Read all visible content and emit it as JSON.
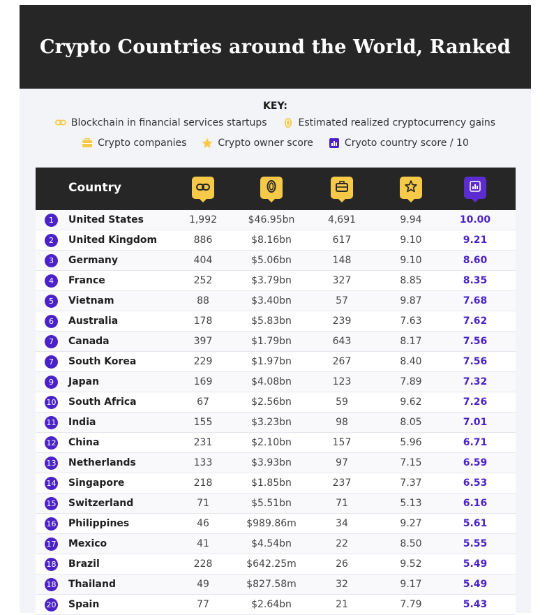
{
  "title": "Crypto Countries around the World, Ranked",
  "key": {
    "heading": "KEY:",
    "items": [
      {
        "icon": "chain-link-icon",
        "label": "Blockchain in financial services startups"
      },
      {
        "icon": "coin-icon",
        "label": "Estimated realized cryptocurrency gains"
      },
      {
        "icon": "briefcase-icon",
        "label": "Crypto companies"
      },
      {
        "icon": "star-icon",
        "label": "Crypto owner score"
      },
      {
        "icon": "bar-chart-icon",
        "label": "Cryoto country score / 10"
      }
    ]
  },
  "colors": {
    "accent": "#4a22c7",
    "yellow": "#f7c948",
    "dark": "#262626"
  },
  "table": {
    "country_header": "Country",
    "column_icons": [
      "chain-link-icon",
      "coin-icon",
      "briefcase-icon",
      "star-icon",
      "bar-chart-icon"
    ],
    "rows": [
      {
        "rank": "1",
        "country": "United States",
        "startups": "1,992",
        "gains": "$46.95bn",
        "companies": "4,691",
        "owner": "9.94",
        "score": "10.00"
      },
      {
        "rank": "2",
        "country": "United Kingdom",
        "startups": "886",
        "gains": "$8.16bn",
        "companies": "617",
        "owner": "9.10",
        "score": "9.21"
      },
      {
        "rank": "3",
        "country": "Germany",
        "startups": "404",
        "gains": "$5.06bn",
        "companies": "148",
        "owner": "9.10",
        "score": "8.60"
      },
      {
        "rank": "4",
        "country": "France",
        "startups": "252",
        "gains": "$3.79bn",
        "companies": "327",
        "owner": "8.85",
        "score": "8.35"
      },
      {
        "rank": "5",
        "country": "Vietnam",
        "startups": "88",
        "gains": "$3.40bn",
        "companies": "57",
        "owner": "9.87",
        "score": "7.68"
      },
      {
        "rank": "6",
        "country": "Australia",
        "startups": "178",
        "gains": "$5.83bn",
        "companies": "239",
        "owner": "7.63",
        "score": "7.62"
      },
      {
        "rank": "7",
        "country": "Canada",
        "startups": "397",
        "gains": "$1.79bn",
        "companies": "643",
        "owner": "8.17",
        "score": "7.56"
      },
      {
        "rank": "7",
        "country": "South Korea",
        "startups": "229",
        "gains": "$1.97bn",
        "companies": "267",
        "owner": "8.40",
        "score": "7.56"
      },
      {
        "rank": "9",
        "country": "Japan",
        "startups": "169",
        "gains": "$4.08bn",
        "companies": "123",
        "owner": "7.89",
        "score": "7.32"
      },
      {
        "rank": "10",
        "country": "South Africa",
        "startups": "67",
        "gains": "$2.56bn",
        "companies": "59",
        "owner": "9.62",
        "score": "7.26"
      },
      {
        "rank": "11",
        "country": "India",
        "startups": "155",
        "gains": "$3.23bn",
        "companies": "98",
        "owner": "8.05",
        "score": "7.01"
      },
      {
        "rank": "12",
        "country": "China",
        "startups": "231",
        "gains": "$2.10bn",
        "companies": "157",
        "owner": "5.96",
        "score": "6.71"
      },
      {
        "rank": "13",
        "country": "Netherlands",
        "startups": "133",
        "gains": "$3.93bn",
        "companies": "97",
        "owner": "7.15",
        "score": "6.59"
      },
      {
        "rank": "14",
        "country": "Singapore",
        "startups": "218",
        "gains": "$1.85bn",
        "companies": "237",
        "owner": "7.37",
        "score": "6.53"
      },
      {
        "rank": "15",
        "country": "Switzerland",
        "startups": "71",
        "gains": "$5.51bn",
        "companies": "71",
        "owner": "5.13",
        "score": "6.16"
      },
      {
        "rank": "16",
        "country": "Philippines",
        "startups": "46",
        "gains": "$989.86m",
        "companies": "34",
        "owner": "9.27",
        "score": "5.61"
      },
      {
        "rank": "17",
        "country": "Mexico",
        "startups": "41",
        "gains": "$4.54bn",
        "companies": "22",
        "owner": "8.50",
        "score": "5.55"
      },
      {
        "rank": "18",
        "country": "Brazil",
        "startups": "228",
        "gains": "$642.25m",
        "companies": "26",
        "owner": "9.52",
        "score": "5.49"
      },
      {
        "rank": "18",
        "country": "Thailand",
        "startups": "49",
        "gains": "$827.58m",
        "companies": "32",
        "owner": "9.17",
        "score": "5.49"
      },
      {
        "rank": "20",
        "country": "Spain",
        "startups": "77",
        "gains": "$2.64bn",
        "companies": "21",
        "owner": "7.79",
        "score": "5.43"
      }
    ]
  }
}
